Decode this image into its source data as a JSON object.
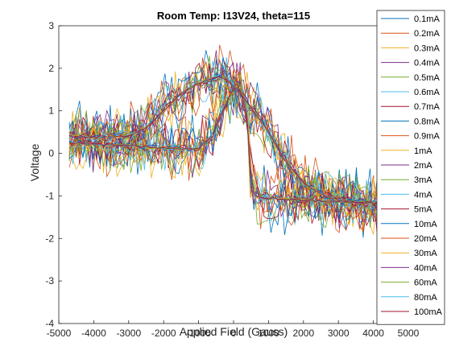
{
  "chart_data": {
    "type": "line",
    "title": "Room Temp: I13V24, theta=115",
    "xlabel": "Applied Field (Gauss)",
    "ylabel": "Voltage",
    "xlim": [
      -5000,
      5000
    ],
    "ylim": [
      -4,
      3
    ],
    "xticks": [
      -5000,
      -4000,
      -3000,
      -2000,
      -1000,
      0,
      1000,
      2000,
      3000,
      4000,
      5000
    ],
    "yticks": [
      -4,
      -3,
      -2,
      -1,
      0,
      1,
      2,
      3
    ],
    "grid": false,
    "legend_position": "top-right",
    "x_range_of_data": [
      -4700,
      4100
    ],
    "series": [
      {
        "name": "0.1mA",
        "color": "#0072BD",
        "noise": 0.85
      },
      {
        "name": "0.2mA",
        "color": "#D95319",
        "noise": 0.8
      },
      {
        "name": "0.3mA",
        "color": "#EDB120",
        "noise": 0.75
      },
      {
        "name": "0.4mA",
        "color": "#7E2F8E",
        "noise": 0.7
      },
      {
        "name": "0.5mA",
        "color": "#77AC30",
        "noise": 0.65
      },
      {
        "name": "0.6mA",
        "color": "#4DBEEE",
        "noise": 0.6
      },
      {
        "name": "0.7mA",
        "color": "#A2142F",
        "noise": 0.55
      },
      {
        "name": "0.8mA",
        "color": "#0072BD",
        "noise": 0.5
      },
      {
        "name": "0.9mA",
        "color": "#D95319",
        "noise": 0.45
      },
      {
        "name": "1mA",
        "color": "#EDB120",
        "noise": 0.4
      },
      {
        "name": "2mA",
        "color": "#7E2F8E",
        "noise": 0.3
      },
      {
        "name": "3mA",
        "color": "#77AC30",
        "noise": 0.22
      },
      {
        "name": "4mA",
        "color": "#4DBEEE",
        "noise": 0.16
      },
      {
        "name": "5mA",
        "color": "#A2142F",
        "noise": 0.12
      },
      {
        "name": "10mA",
        "color": "#0072BD",
        "noise": 0.07
      },
      {
        "name": "20mA",
        "color": "#D95319",
        "noise": 0.05
      },
      {
        "name": "30mA",
        "color": "#EDB120",
        "noise": 0.04
      },
      {
        "name": "40mA",
        "color": "#7E2F8E",
        "noise": 0.03
      },
      {
        "name": "60mA",
        "color": "#77AC30",
        "noise": 0.03
      },
      {
        "name": "80mA",
        "color": "#4DBEEE",
        "noise": 0.02
      },
      {
        "name": "100mA",
        "color": "#A2142F",
        "noise": 0.02
      }
    ],
    "base_curve": {
      "x": [
        -4700,
        -4000,
        -3000,
        -2500,
        -2000,
        -1500,
        -1000,
        -600,
        -300,
        0,
        200,
        400,
        500,
        600,
        1000,
        1500,
        2000,
        2500,
        3000,
        3500,
        4100
      ],
      "y": [
        0.25,
        0.22,
        0.18,
        0.15,
        0.12,
        0.1,
        0.12,
        0.4,
        1.0,
        1.55,
        1.5,
        0.8,
        -0.6,
        -1.0,
        -1.05,
        -1.08,
        -1.1,
        -1.12,
        -1.13,
        -1.15,
        -1.17
      ]
    },
    "upper_curve": {
      "x": [
        -4700,
        -4000,
        -3000,
        -2500,
        -2000,
        -1500,
        -1000,
        -500,
        -200,
        0,
        300,
        1000,
        1500,
        2000,
        2500,
        3000,
        3500,
        4100
      ],
      "y": [
        0.4,
        0.38,
        0.42,
        0.6,
        1.0,
        1.4,
        1.65,
        1.8,
        1.75,
        1.55,
        1.3,
        0.5,
        -0.2,
        -0.7,
        -0.95,
        -1.1,
        -1.15,
        -1.17
      ]
    }
  }
}
